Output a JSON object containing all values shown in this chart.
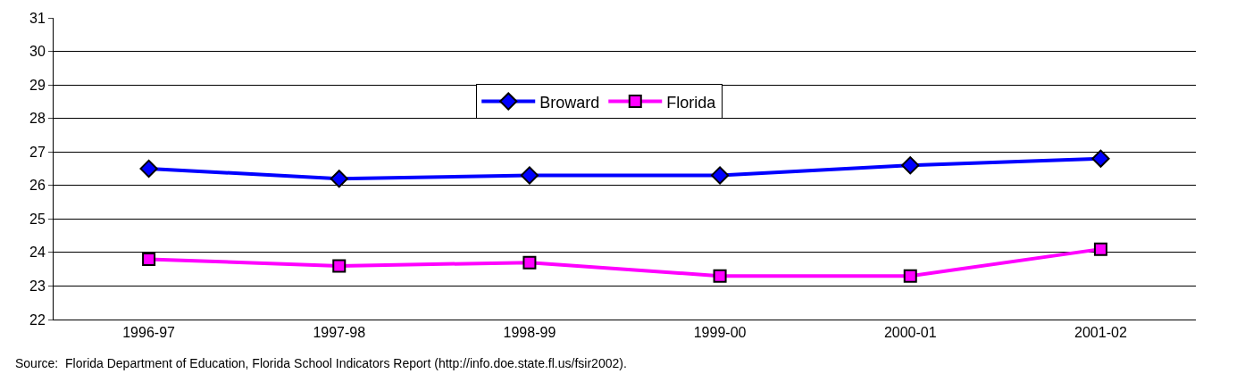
{
  "chart_data": {
    "type": "line",
    "categories": [
      "1996-97",
      "1997-98",
      "1998-99",
      "1999-00",
      "2000-01",
      "2001-02"
    ],
    "series": [
      {
        "name": "Broward",
        "color": "#0000ff",
        "marker": "diamond",
        "values": [
          26.5,
          26.2,
          26.3,
          26.3,
          26.6,
          26.8
        ]
      },
      {
        "name": "Florida",
        "color": "#ff00ff",
        "marker": "square",
        "values": [
          23.8,
          23.6,
          23.7,
          23.3,
          23.3,
          24.1
        ]
      }
    ],
    "ylim": [
      22,
      31
    ],
    "yticks": [
      22,
      23,
      24,
      25,
      26,
      27,
      28,
      29,
      30,
      31
    ],
    "grid": "y",
    "legend": "top",
    "line_style": "solid",
    "annotations": [
      "Source:  Florida Department of Education, Florida School Indicators Report (http://info.doe.state.fl.us/fsir2002)."
    ]
  }
}
